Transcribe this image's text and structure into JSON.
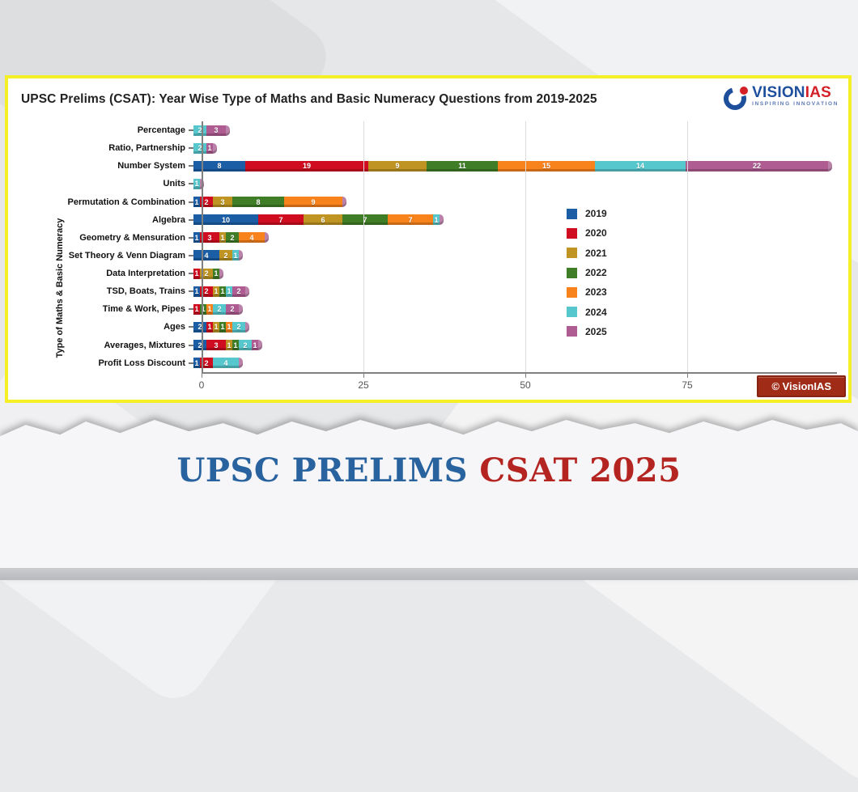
{
  "page": {
    "headline": {
      "part1": "UPSC PRELIMS ",
      "part2": "CSAT 2025",
      "part1_color": "#29639f",
      "part2_color": "#b42420"
    }
  },
  "card": {
    "title": "UPSC Prelims (CSAT): Year Wise Type of Maths and Basic Numeracy Questions from 2019-2025",
    "logo": {
      "name": "VISION",
      "suffix": "IAS",
      "tagline": "INSPIRING INNOVATION",
      "blue": "#1d4f9c",
      "red": "#d42027"
    },
    "copyright": "© VisionIAS"
  },
  "chart_data": {
    "type": "bar",
    "orientation": "horizontal",
    "stacked": true,
    "title": "UPSC Prelims (CSAT): Year Wise Type of Maths and Basic Numeracy Questions from 2019-2025",
    "axis_label": "Type of Maths & Basic Numeracy",
    "categories": [
      "Percentage",
      "Ratio, Partnership",
      "Number System",
      "Units",
      "Permutation & Combination",
      "Algebra",
      "Geometry & Mensuration",
      "Set Theory & Venn Diagram",
      "Data Interpretation",
      "TSD, Boats, Trains",
      "Time & Work, Pipes",
      "Ages",
      "Averages, Mixtures",
      "Profit Loss Discount"
    ],
    "series": [
      {
        "name": "2019",
        "color": "#1b5ea6",
        "values": [
          0,
          0,
          8,
          0,
          1,
          10,
          1,
          4,
          0,
          1,
          0,
          2,
          2,
          1
        ]
      },
      {
        "name": "2020",
        "color": "#d00d20",
        "values": [
          0,
          0,
          19,
          0,
          2,
          7,
          3,
          0,
          1,
          2,
          1,
          1,
          3,
          2
        ]
      },
      {
        "name": "2021",
        "color": "#bf9422",
        "values": [
          0,
          0,
          9,
          0,
          3,
          6,
          1,
          2,
          2,
          1,
          0,
          1,
          1,
          0
        ]
      },
      {
        "name": "2022",
        "color": "#3f7d26",
        "values": [
          0,
          0,
          11,
          0,
          8,
          7,
          2,
          0,
          1,
          1,
          1,
          1,
          1,
          0
        ]
      },
      {
        "name": "2023",
        "color": "#f8821c",
        "values": [
          0,
          0,
          15,
          0,
          9,
          7,
          4,
          0,
          0,
          0,
          1,
          1,
          0,
          0
        ]
      },
      {
        "name": "2024",
        "color": "#57c7ce",
        "values": [
          2,
          2,
          14,
          1,
          0,
          1,
          0,
          1,
          0,
          1,
          2,
          2,
          2,
          4
        ]
      },
      {
        "name": "2025",
        "color": "#af5c92",
        "values": [
          3,
          1,
          22,
          0,
          0,
          0,
          0,
          0,
          0,
          2,
          2,
          0,
          1,
          0
        ]
      }
    ],
    "x_ticks": [
      0,
      25,
      50,
      75
    ],
    "xlim": [
      0,
      97
    ],
    "grid": true,
    "legend_position": "center-right"
  }
}
